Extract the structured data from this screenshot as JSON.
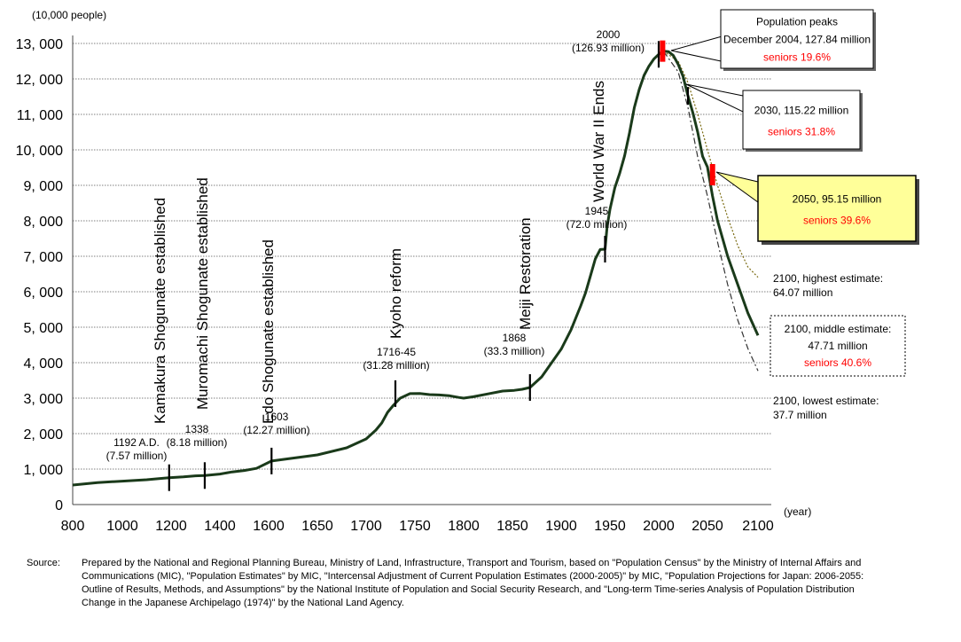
{
  "chart_data": {
    "type": "line",
    "y_unit_label": "(10,000 people)",
    "x_unit_label": "(year)",
    "xlim": [
      800,
      2100
    ],
    "ylim": [
      0,
      13000
    ],
    "y_ticks": [
      "0",
      "1, 000",
      "2, 000",
      "3, 000",
      "4, 000",
      "5, 000",
      "6, 000",
      "7, 000",
      "8, 000",
      "9, 000",
      "10, 000",
      "11, 000",
      "12, 000",
      "13, 000"
    ],
    "x_ticks": [
      "800",
      "1000",
      "1200",
      "1400",
      "1600",
      "1650",
      "1700",
      "1750",
      "1800",
      "1850",
      "1900",
      "1950",
      "2000",
      "2050",
      "2100"
    ],
    "grid": "horizontal",
    "series": [
      {
        "points": [
          [
            800,
            551
          ],
          [
            900,
            620
          ],
          [
            1000,
            660
          ],
          [
            1100,
            700
          ],
          [
            1150,
            730
          ],
          [
            1192,
            757
          ],
          [
            1250,
            780
          ],
          [
            1300,
            810
          ],
          [
            1338,
            818
          ],
          [
            1400,
            860
          ],
          [
            1450,
            920
          ],
          [
            1500,
            960
          ],
          [
            1550,
            1020
          ],
          [
            1603,
            1227
          ],
          [
            1620,
            1290
          ],
          [
            1650,
            1400
          ],
          [
            1680,
            1600
          ],
          [
            1700,
            1850
          ],
          [
            1710,
            2100
          ],
          [
            1716,
            2300
          ],
          [
            1722,
            2600
          ],
          [
            1728,
            2800
          ],
          [
            1735,
            3000
          ],
          [
            1745,
            3128
          ],
          [
            1755,
            3130
          ],
          [
            1765,
            3100
          ],
          [
            1775,
            3090
          ],
          [
            1785,
            3070
          ],
          [
            1795,
            3020
          ],
          [
            1800,
            3000
          ],
          [
            1810,
            3040
          ],
          [
            1825,
            3120
          ],
          [
            1840,
            3200
          ],
          [
            1852,
            3220
          ],
          [
            1860,
            3250
          ],
          [
            1868,
            3300
          ],
          [
            1880,
            3600
          ],
          [
            1890,
            3990
          ],
          [
            1900,
            4380
          ],
          [
            1910,
            4920
          ],
          [
            1920,
            5600
          ],
          [
            1925,
            5970
          ],
          [
            1930,
            6445
          ],
          [
            1935,
            6925
          ],
          [
            1940,
            7190
          ],
          [
            1945,
            7200
          ],
          [
            1947,
            7810
          ],
          [
            1950,
            8320
          ],
          [
            1955,
            8930
          ],
          [
            1960,
            9340
          ],
          [
            1965,
            9830
          ],
          [
            1970,
            10470
          ],
          [
            1975,
            11190
          ],
          [
            1980,
            11700
          ],
          [
            1985,
            12100
          ],
          [
            1990,
            12360
          ],
          [
            1995,
            12560
          ],
          [
            2000,
            12693
          ],
          [
            2004,
            12784
          ],
          [
            2010,
            12770
          ],
          [
            2015,
            12660
          ],
          [
            2020,
            12410
          ],
          [
            2025,
            12070
          ],
          [
            2030,
            11522
          ],
          [
            2035,
            11050
          ],
          [
            2040,
            10500
          ],
          [
            2045,
            9820
          ],
          [
            2050,
            9515
          ],
          [
            2055,
            8700
          ],
          [
            2060,
            8000
          ],
          [
            2070,
            7000
          ],
          [
            2080,
            6200
          ],
          [
            2090,
            5400
          ],
          [
            2100,
            4771
          ]
        ]
      },
      {
        "points": [
          [
            2005,
            12777
          ],
          [
            2020,
            12500
          ],
          [
            2030,
            11900
          ],
          [
            2040,
            11000
          ],
          [
            2050,
            10000
          ],
          [
            2060,
            9000
          ],
          [
            2070,
            8100
          ],
          [
            2080,
            7300
          ],
          [
            2090,
            6700
          ],
          [
            2100,
            6407
          ]
        ],
        "style": "dotted"
      },
      {
        "points": [
          [
            2005,
            12777
          ],
          [
            2020,
            12200
          ],
          [
            2030,
            11200
          ],
          [
            2040,
            9800
          ],
          [
            2050,
            8700
          ],
          [
            2060,
            7400
          ],
          [
            2070,
            6200
          ],
          [
            2080,
            5200
          ],
          [
            2090,
            4400
          ],
          [
            2100,
            3770
          ]
        ],
        "style": "dashdot"
      }
    ],
    "events": [
      {
        "year": 1192,
        "value": 757,
        "label": "Kamakura Shogunate established",
        "note": "1192 A.D.\n(7.57 million)"
      },
      {
        "year": 1338,
        "value": 818,
        "label": "Muromachi Shogunate established",
        "note": "1338\n(8.18 million)"
      },
      {
        "year": 1603,
        "value": 1227,
        "label": "Edo Shogunate established",
        "note": "1603\n(12.27 million)"
      },
      {
        "year": 1730,
        "value": 3128,
        "label": "Kyoho reform",
        "note": "1716-45\n(31.28 million)"
      },
      {
        "year": 1868,
        "value": 3300,
        "label": "Meiji Restoration",
        "note": "1868\n(33.3 million)"
      },
      {
        "year": 1945,
        "value": 7200,
        "label": "World War II Ends",
        "note": "1945\n(72.0 million)"
      },
      {
        "year": 2000,
        "value": 12693,
        "label": "",
        "note": "2000\n(126.93 million)"
      }
    ],
    "annotations": [
      {
        "lines": [
          "Population peaks",
          "December 2004, 127.84 million",
          "seniors 19.6%"
        ],
        "year": 2004,
        "value": 12784
      },
      {
        "lines": [
          "2030, 115.22 million",
          "seniors 31.8%"
        ],
        "year": 2030,
        "value": 11522
      },
      {
        "lines": [
          "2050, 95.15 million",
          "seniors 39.6%"
        ],
        "year": 2050,
        "value": 9515,
        "highlight": true
      },
      {
        "lines": [
          "2100, highest estimate:",
          "64.07 million"
        ],
        "year": 2100,
        "value": 6407
      },
      {
        "lines": [
          "2100, middle estimate:",
          "47.71 million",
          "seniors 40.6%"
        ],
        "year": 2100,
        "value": 4771
      },
      {
        "lines": [
          "2100, lowest estimate:",
          "37.7 million"
        ],
        "year": 2100,
        "value": 3770
      }
    ],
    "colors": {
      "main_line": "#1a3a1a",
      "high_line": "#7a6a10",
      "low_line": "#333333",
      "marker": "#ff0000",
      "seniors_text": "#ff0000",
      "highlight_box": "#ffff99"
    }
  },
  "source": {
    "label": "Source:",
    "text": "Prepared by the National and Regional Planning Bureau, Ministry of Land, Infrastructure, Transport and Tourism, based on \"Population Census\" by the Ministry of Internal Affairs and Communications (MIC), \"Population Estimates\" by MIC, \"Intercensal Adjustment of Current Population Estimates (2000-2005)\" by MIC, \"Population Projections for Japan: 2006-2055: Outline of Results, Methods, and Assumptions\" by the National Institute of Population and Social Security Research, and \"Long-term Time-series Analysis of Population Distribution Change in the Japanese Archipelago (1974)\" by the National Land Agency."
  }
}
